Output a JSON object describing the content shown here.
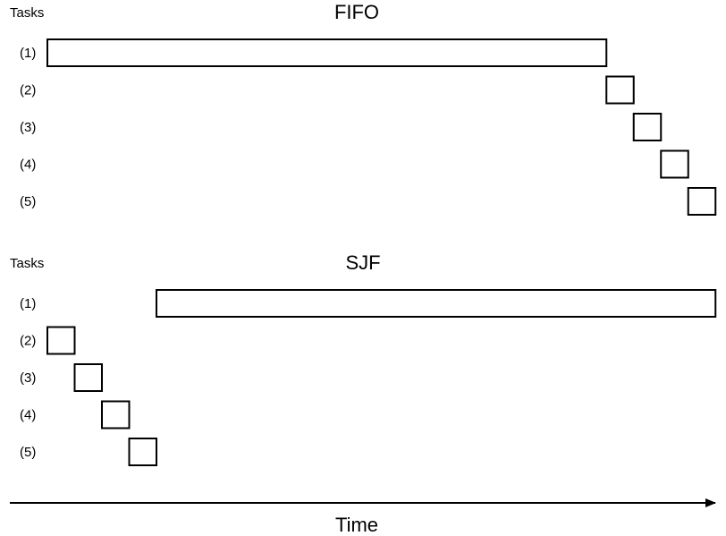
{
  "panels": [
    {
      "id": "fifo",
      "tasks_label": "Tasks",
      "title": "FIFO",
      "rows": [
        {
          "label": "(1)",
          "start": 0,
          "duration": 20.5
        },
        {
          "label": "(2)",
          "start": 20.5,
          "duration": 1
        },
        {
          "label": "(3)",
          "start": 21.5,
          "duration": 1
        },
        {
          "label": "(4)",
          "start": 22.5,
          "duration": 1
        },
        {
          "label": "(5)",
          "start": 23.5,
          "duration": 1
        }
      ]
    },
    {
      "id": "sjf",
      "tasks_label": "Tasks",
      "title": "SJF",
      "rows": [
        {
          "label": "(1)",
          "start": 4,
          "duration": 20.5
        },
        {
          "label": "(2)",
          "start": 0,
          "duration": 1
        },
        {
          "label": "(3)",
          "start": 1,
          "duration": 1
        },
        {
          "label": "(4)",
          "start": 2,
          "duration": 1
        },
        {
          "label": "(5)",
          "start": 3,
          "duration": 1
        }
      ]
    }
  ],
  "axis": {
    "label": "Time"
  }
}
